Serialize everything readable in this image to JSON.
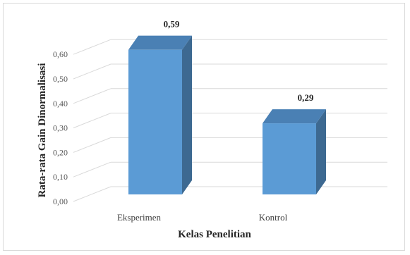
{
  "chart_data": {
    "type": "bar",
    "categories": [
      "Eksperimen",
      "Kontrol"
    ],
    "values": [
      0.59,
      0.29
    ],
    "data_labels": [
      "0,59",
      "0,29"
    ],
    "xlabel": "Kelas Penelitian",
    "ylabel": "Rata-rata Gain Dinormalisasi",
    "ylim": [
      0,
      0.6
    ],
    "yticks": [
      "0,00",
      "0,10",
      "0,20",
      "0,30",
      "0,40",
      "0,50",
      "0,60"
    ],
    "grid": true,
    "style": "3d-column",
    "colors": {
      "bar_front": "#5b9bd5",
      "bar_side": "#3d6991",
      "bar_top": "#4a80b4",
      "grid": "#d9d9d9"
    }
  }
}
